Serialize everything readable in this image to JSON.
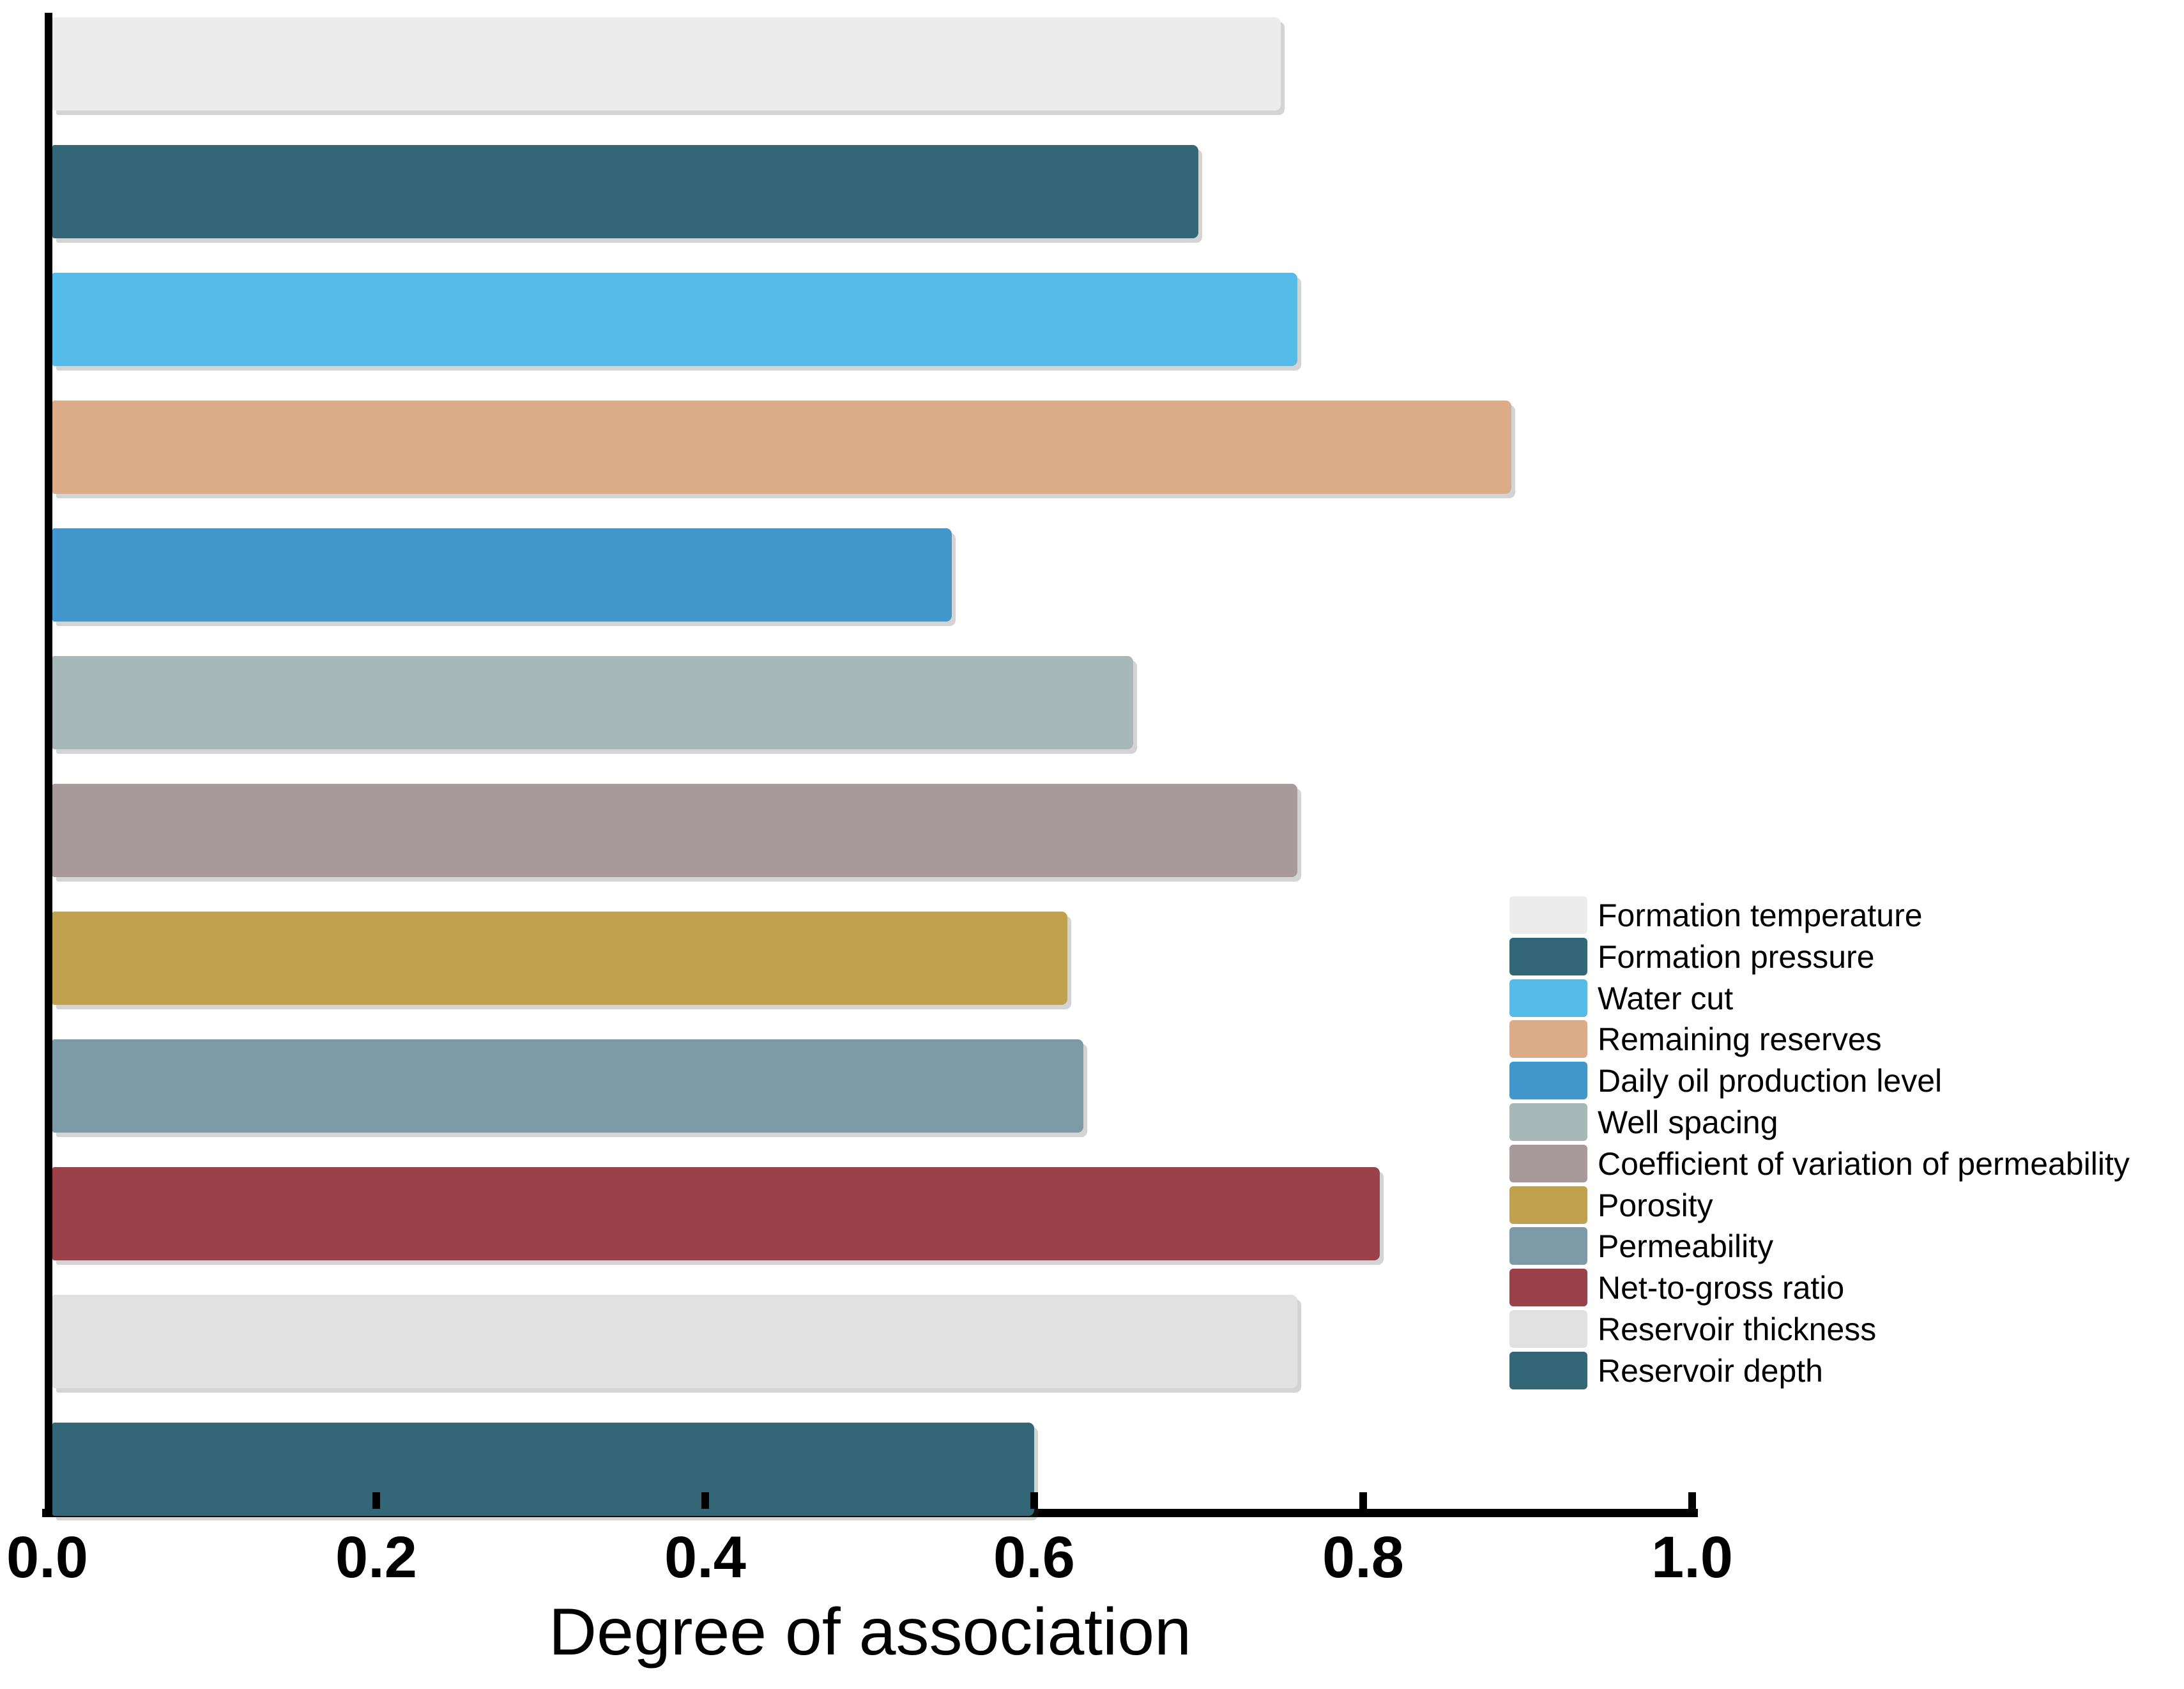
{
  "chart_data": {
    "type": "bar",
    "orientation": "horizontal",
    "title": "",
    "xlabel": "Degree of association",
    "ylabel": "",
    "xlim": [
      0.0,
      1.0
    ],
    "x_tick_labels": [
      "0.0",
      "0.2",
      "0.4",
      "0.6",
      "0.8",
      "1.0"
    ],
    "grid": false,
    "legend_position": "lower right",
    "categories": [
      "Formation temperature",
      "Formation pressure",
      "Water cut",
      "Remaining reserves",
      "Daily oil production level",
      "Well spacing",
      "Coefficient of variation of permeability",
      "Porosity",
      "Permeability",
      "Net-to-gross ratio",
      "Reservoir thickness",
      "Reservoir depth"
    ],
    "values": [
      0.75,
      0.7,
      0.76,
      0.89,
      0.55,
      0.66,
      0.76,
      0.62,
      0.63,
      0.81,
      0.76,
      0.6
    ],
    "colors": [
      "#ECECEC",
      "#336676",
      "#55BBE9",
      "#DCAC88",
      "#4297CD",
      "#A7B8B8",
      "#A8999A",
      "#C0A14E",
      "#7C9BA6",
      "#9A4149",
      "#E1E1E1",
      "#336676"
    ]
  },
  "axis_colors": {
    "spine": "#000000",
    "tick": "#000000",
    "text": "#000000"
  }
}
